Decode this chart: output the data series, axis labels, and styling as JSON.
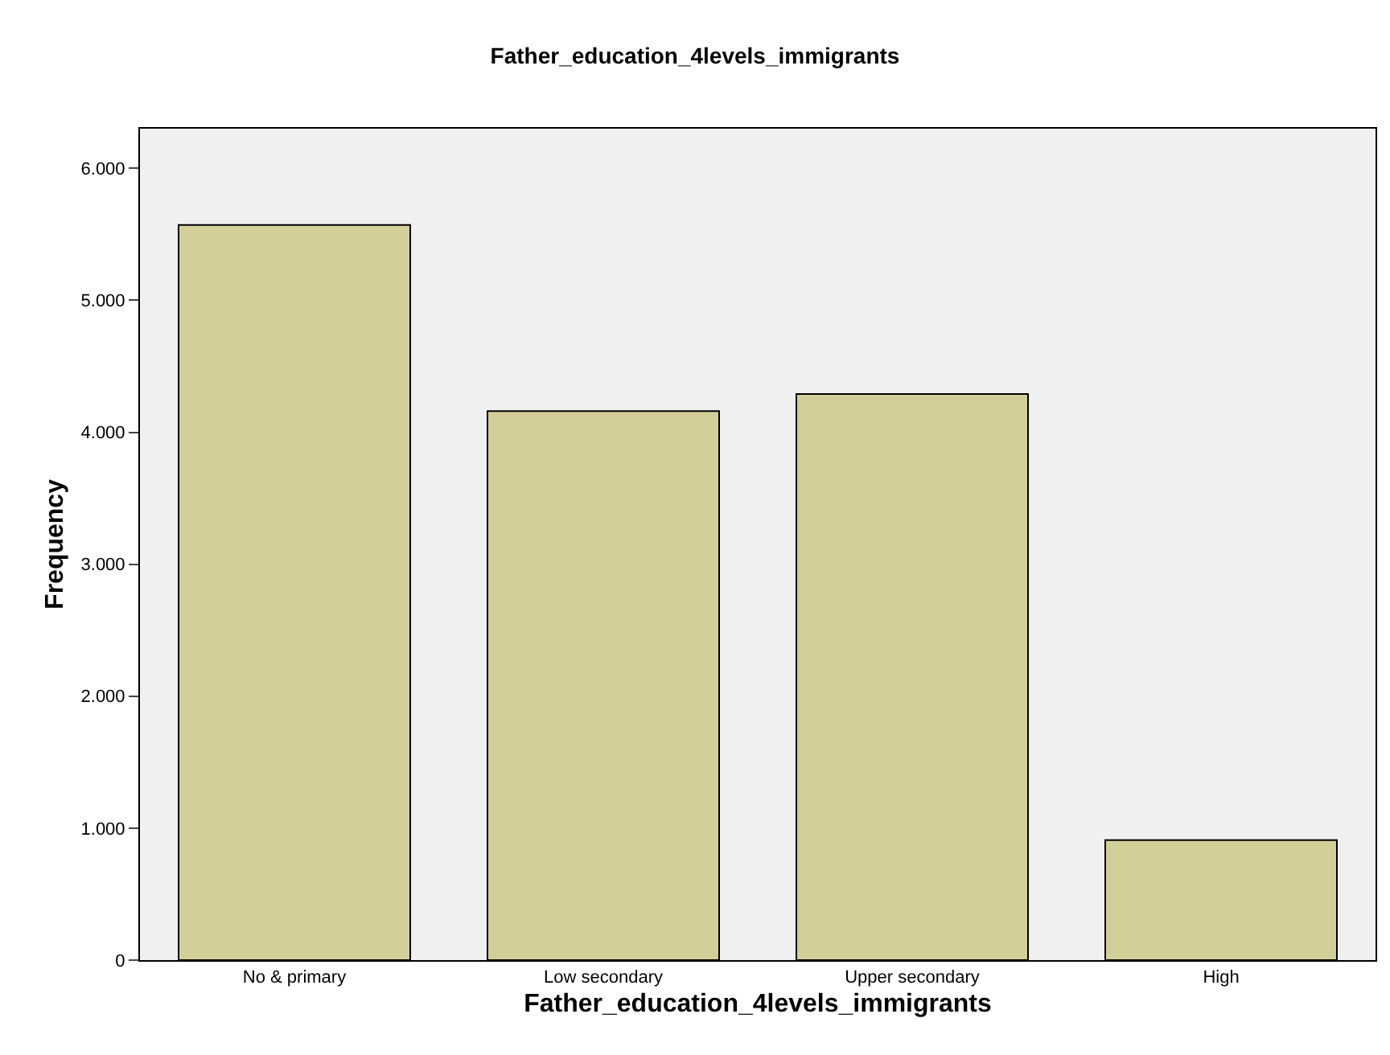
{
  "chart_data": {
    "type": "bar",
    "title": "Father_education_4levels_immigrants",
    "xlabel": "Father_education_4levels_immigrants",
    "ylabel": "Frequency",
    "categories": [
      "No & primary",
      "Low secondary",
      "Upper secondary",
      "High"
    ],
    "values": [
      5570,
      4160,
      4290,
      910
    ],
    "color": "#d3ce97",
    "ylim": [
      0,
      6300
    ],
    "yticks": [
      {
        "value": 0,
        "label": "0"
      },
      {
        "value": 1000,
        "label": "1.000"
      },
      {
        "value": 2000,
        "label": "2.000"
      },
      {
        "value": 3000,
        "label": "3.000"
      },
      {
        "value": 4000,
        "label": "4.000"
      },
      {
        "value": 5000,
        "label": "5.000"
      },
      {
        "value": 6000,
        "label": "6.000"
      }
    ],
    "grid": false,
    "legend": false
  }
}
